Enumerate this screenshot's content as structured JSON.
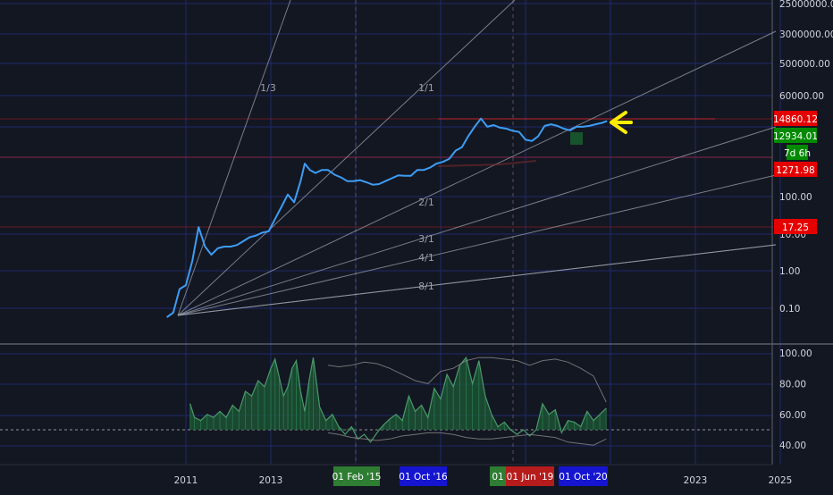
{
  "chart_data": [
    {
      "type": "line",
      "title": "",
      "xlabel": "",
      "ylabel": "",
      "y_scale": "log",
      "grid": true,
      "price_axis_ticks": [
        "25000000.00",
        "3000000.00",
        "500000.00",
        "60000.00",
        "100.00",
        "10.00",
        "1.00",
        "0.10"
      ],
      "x_axis_ticks": [
        "2011",
        "2013",
        "2023",
        "2025"
      ],
      "x_axis_badges": [
        {
          "text": "01 Feb '15",
          "color": "#2e7d32"
        },
        {
          "text": "01 Oct '16",
          "color": "#1515d0"
        },
        {
          "text": "01",
          "color": "#2e7d32"
        },
        {
          "text": "01 Jun '19",
          "color": "#b71c1c"
        },
        {
          "text": "01 Oct '20",
          "color": "#1515d0"
        }
      ],
      "price_badges": [
        {
          "text": "14860.12",
          "color": "#e50000"
        },
        {
          "text": "12934.01",
          "color": "#008a00"
        },
        {
          "text": "7d 6h",
          "color": "#008a00"
        },
        {
          "text": "1271.98",
          "color": "#e50000"
        },
        {
          "text": "17.25",
          "color": "#e50000"
        }
      ],
      "gann_fan_labels": [
        "1/3",
        "1/1",
        "2/1",
        "3/1",
        "4/1",
        "8/1"
      ],
      "series": [
        {
          "color": "#3d9df3",
          "x": [
            2010.55,
            2010.7,
            2010.85,
            2011.0,
            2011.15,
            2011.3,
            2011.45,
            2011.6,
            2011.75,
            2011.9,
            2012.05,
            2012.2,
            2012.35,
            2012.5,
            2012.65,
            2012.8,
            2012.95,
            2013.1,
            2013.25,
            2013.4,
            2013.55,
            2013.7,
            2013.8,
            2013.92,
            2014.05,
            2014.2,
            2014.35,
            2014.5,
            2014.65,
            2014.8,
            2014.95,
            2015.1,
            2015.25,
            2015.4,
            2015.55,
            2015.7,
            2015.85,
            2016.0,
            2016.15,
            2016.3,
            2016.45,
            2016.6,
            2016.75,
            2016.9,
            2017.05,
            2017.2,
            2017.35,
            2017.5,
            2017.65,
            2017.8,
            2017.95,
            2018.1,
            2018.25,
            2018.4,
            2018.55,
            2018.7,
            2018.85,
            2019.0,
            2019.15,
            2019.3,
            2019.45,
            2019.6,
            2019.75,
            2019.9,
            2020.05,
            2020.2,
            2020.35,
            2020.5,
            2020.65,
            2020.8,
            2020.92
          ],
          "y": [
            0.06,
            0.08,
            0.35,
            0.45,
            2.0,
            17,
            5,
            3,
            4.5,
            5,
            5,
            5.5,
            7,
            9,
            10,
            12,
            13,
            28,
            60,
            130,
            80,
            300,
            900,
            600,
            500,
            600,
            600,
            450,
            380,
            300,
            300,
            320,
            280,
            240,
            250,
            300,
            360,
            430,
            420,
            420,
            600,
            600,
            700,
            900,
            1000,
            1200,
            2000,
            2500,
            5000,
            9000,
            15000,
            9000,
            10000,
            8500,
            8000,
            7000,
            6500,
            4000,
            3700,
            5000,
            9500,
            10500,
            9500,
            8000,
            7200,
            9000,
            9000,
            9500,
            10500,
            11500,
            12934
          ]
        }
      ]
    },
    {
      "type": "area",
      "y_axis_ticks": [
        "100.00",
        "80.00",
        "60.00",
        "40.00"
      ],
      "ylim": [
        30,
        100
      ],
      "reference_line": 50,
      "series": [
        {
          "color": "#4a9a6a",
          "x": [
            2011.1,
            2011.2,
            2011.35,
            2011.5,
            2011.65,
            2011.8,
            2011.95,
            2012.1,
            2012.25,
            2012.4,
            2012.55,
            2012.7,
            2012.85,
            2013.0,
            2013.1,
            2013.2,
            2013.3,
            2013.4,
            2013.5,
            2013.6,
            2013.7,
            2013.8,
            2013.9,
            2014.0,
            2014.15,
            2014.3,
            2014.45,
            2014.6,
            2014.75,
            2014.9,
            2015.05,
            2015.2,
            2015.35,
            2015.5,
            2015.65,
            2015.8,
            2015.95,
            2016.1,
            2016.25,
            2016.4,
            2016.55,
            2016.7,
            2016.85,
            2017.0,
            2017.15,
            2017.3,
            2017.45,
            2017.6,
            2017.75,
            2017.9,
            2018.05,
            2018.2,
            2018.35,
            2018.5,
            2018.65,
            2018.8,
            2018.95,
            2019.1,
            2019.25,
            2019.4,
            2019.55,
            2019.7,
            2019.85,
            2020.0,
            2020.15,
            2020.3,
            2020.45,
            2020.6,
            2020.75,
            2020.9
          ],
          "values": [
            67,
            58,
            56,
            60,
            58,
            62,
            58,
            66,
            62,
            75,
            72,
            82,
            78,
            90,
            96,
            84,
            72,
            78,
            90,
            95,
            75,
            62,
            82,
            97,
            65,
            56,
            60,
            52,
            47,
            52,
            44,
            47,
            42,
            48,
            53,
            57,
            60,
            56,
            72,
            62,
            66,
            58,
            77,
            70,
            86,
            78,
            92,
            97,
            80,
            95,
            72,
            60,
            52,
            55,
            50,
            47,
            50,
            46,
            50,
            67,
            60,
            63,
            48,
            56,
            55,
            52,
            62,
            56,
            60,
            64
          ]
        }
      ],
      "upper_band": {
        "color": "#8a8a8a",
        "x": [
          2014.35,
          2014.6,
          2014.9,
          2015.2,
          2015.5,
          2015.8,
          2016.1,
          2016.4,
          2016.7,
          2017.0,
          2017.3,
          2017.6,
          2017.9,
          2018.2,
          2018.5,
          2018.8,
          2019.1,
          2019.4,
          2019.7,
          2020.0,
          2020.3,
          2020.6,
          2020.9
        ],
        "values": [
          92,
          91,
          92,
          94,
          93,
          90,
          86,
          82,
          80,
          88,
          90,
          95,
          97,
          97,
          96,
          95,
          92,
          95,
          96,
          94,
          90,
          85,
          68
        ]
      },
      "lower_band": {
        "color": "#8a8a8a",
        "x": [
          2014.35,
          2014.6,
          2014.9,
          2015.2,
          2015.5,
          2015.8,
          2016.1,
          2016.4,
          2016.7,
          2017.0,
          2017.3,
          2017.6,
          2017.9,
          2018.2,
          2018.5,
          2018.8,
          2019.1,
          2019.4,
          2019.7,
          2020.0,
          2020.3,
          2020.6,
          2020.9
        ],
        "values": [
          48,
          47,
          45,
          44,
          43,
          44,
          46,
          47,
          48,
          48,
          47,
          45,
          44,
          44,
          45,
          46,
          47,
          46,
          45,
          42,
          41,
          40,
          44
        ]
      }
    }
  ]
}
